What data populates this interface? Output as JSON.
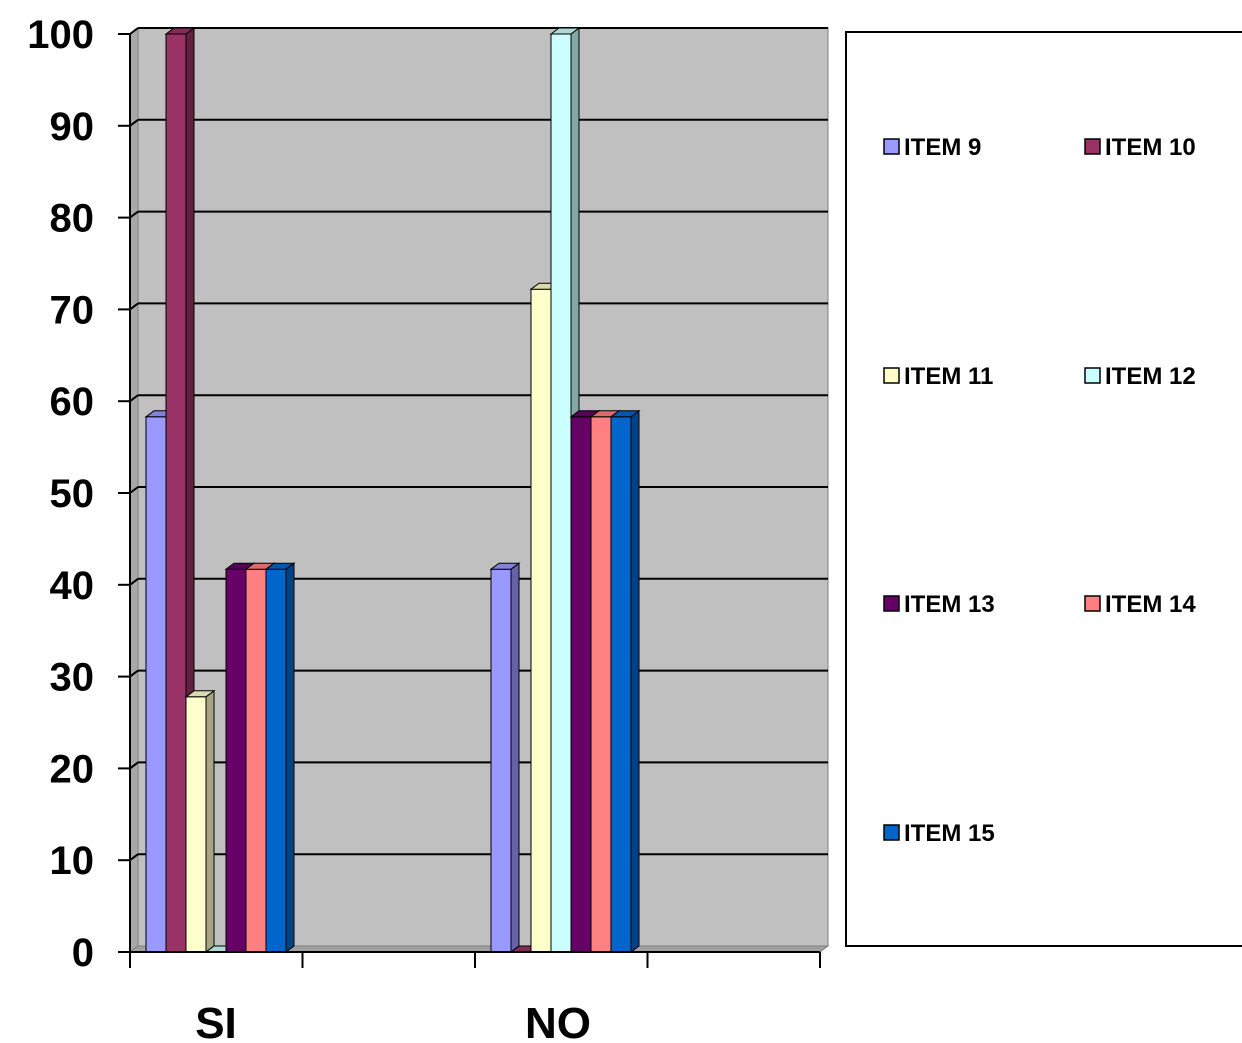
{
  "chart_data": {
    "type": "bar",
    "categories": [
      "SI",
      "NO"
    ],
    "series": [
      {
        "name": "ITEM 9",
        "values": [
          58.3,
          41.7
        ],
        "color": "#9999FF"
      },
      {
        "name": "ITEM 10",
        "values": [
          100,
          0
        ],
        "color": "#993366"
      },
      {
        "name": "ITEM 11",
        "values": [
          27.8,
          72.2
        ],
        "color": "#FFFFCC"
      },
      {
        "name": "ITEM 12",
        "values": [
          0,
          100
        ],
        "color": "#CCFFFF"
      },
      {
        "name": "ITEM 13",
        "values": [
          41.7,
          58.3
        ],
        "color": "#660066"
      },
      {
        "name": "ITEM 14",
        "values": [
          41.7,
          58.3
        ],
        "color": "#FF8080"
      },
      {
        "name": "ITEM 15",
        "values": [
          41.7,
          58.3
        ],
        "color": "#0066CC"
      }
    ],
    "y_ticks": [
      "0",
      "10",
      "20",
      "30",
      "40",
      "50",
      "60",
      "70",
      "80",
      "90",
      "100"
    ],
    "ylim": [
      0,
      100
    ],
    "grid": true,
    "legend_position": "right",
    "plot_background": "#C0C0C0",
    "style": "3d-clustered-column"
  }
}
